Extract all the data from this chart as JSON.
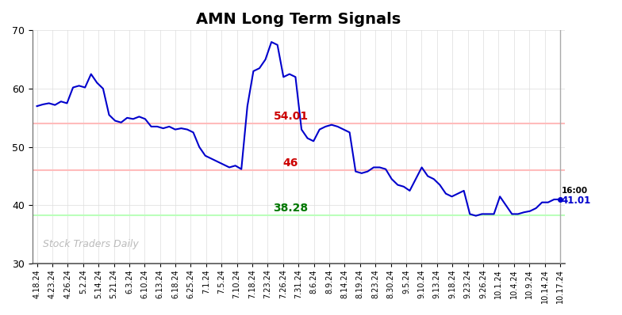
{
  "title": "AMN Long Term Signals",
  "title_fontsize": 14,
  "title_fontweight": "bold",
  "background_color": "#ffffff",
  "line_color": "#0000cc",
  "line_width": 1.5,
  "ylim": [
    30,
    70
  ],
  "yticks": [
    30,
    40,
    50,
    60,
    70
  ],
  "hline_upper": 54.01,
  "hline_mid": 46.0,
  "hline_lower": 38.28,
  "hline_upper_color": "#ffbbbb",
  "hline_mid_color": "#ffbbbb",
  "hline_lower_color": "#bbffbb",
  "hline_upper_label": "54.01",
  "hline_mid_label": "46",
  "hline_lower_label": "38.28",
  "hline_label_color_upper": "#cc0000",
  "hline_label_color_mid": "#cc0000",
  "hline_label_color_lower": "#007700",
  "watermark": "Stock Traders Daily",
  "watermark_color": "#bbbbbb",
  "last_label": "16:00",
  "last_value_label": "41.01",
  "last_value_color": "#0000cc",
  "grid_color": "#dddddd",
  "x_labels": [
    "4.18.24",
    "4.23.24",
    "4.26.24",
    "5.2.24",
    "5.14.24",
    "5.21.24",
    "6.3.24",
    "6.10.24",
    "6.13.24",
    "6.18.24",
    "6.25.24",
    "7.1.24",
    "7.5.24",
    "7.10.24",
    "7.18.24",
    "7.23.24",
    "7.26.24",
    "7.31.24",
    "8.6.24",
    "8.9.24",
    "8.14.24",
    "8.19.24",
    "8.23.24",
    "8.30.24",
    "9.5.24",
    "9.10.24",
    "9.13.24",
    "9.18.24",
    "9.23.24",
    "9.26.24",
    "10.1.24",
    "10.4.24",
    "10.9.24",
    "10.14.24",
    "10.17.24"
  ],
  "y_values": [
    57.0,
    57.3,
    57.5,
    57.2,
    57.8,
    57.5,
    60.2,
    60.5,
    60.2,
    62.5,
    61.0,
    60.0,
    55.5,
    54.5,
    54.2,
    55.0,
    54.8,
    55.2,
    54.8,
    53.5,
    53.5,
    53.2,
    53.5,
    53.0,
    53.2,
    53.0,
    52.5,
    50.0,
    48.5,
    48.0,
    47.5,
    47.0,
    46.5,
    46.8,
    46.2,
    57.0,
    63.0,
    63.5,
    65.0,
    68.0,
    67.5,
    62.0,
    62.5,
    62.0,
    53.0,
    51.5,
    51.0,
    53.0,
    53.5,
    53.8,
    53.5,
    53.0,
    52.5,
    45.8,
    45.5,
    45.8,
    46.5,
    46.5,
    46.2,
    44.5,
    43.5,
    43.2,
    42.5,
    44.5,
    46.5,
    45.0,
    44.5,
    43.5,
    42.0,
    41.5,
    42.0,
    42.5,
    38.5,
    38.2,
    38.5,
    38.5,
    38.5,
    41.5,
    40.0,
    38.5,
    38.5,
    38.8,
    39.0,
    39.5,
    40.5,
    40.5,
    41.0,
    41.01
  ]
}
